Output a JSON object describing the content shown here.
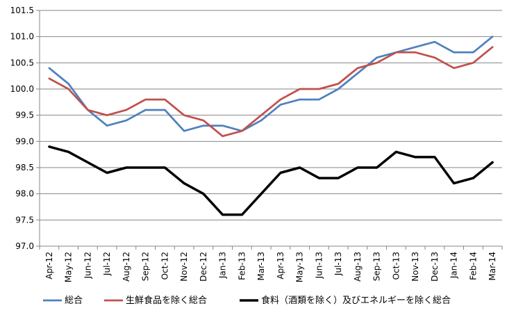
{
  "chart_data": {
    "type": "line",
    "title": "",
    "xlabel": "",
    "ylabel": "",
    "ylim": [
      97.0,
      101.5
    ],
    "yticks": [
      "97.0",
      "97.5",
      "98.0",
      "98.5",
      "99.0",
      "99.5",
      "100.0",
      "100.5",
      "101.0",
      "101.5"
    ],
    "ytick_values": [
      97.0,
      97.5,
      98.0,
      98.5,
      99.0,
      99.5,
      100.0,
      100.5,
      101.0,
      101.5
    ],
    "grid": "horizontal",
    "legend_position": "bottom",
    "categories": [
      "Apr-12",
      "May-12",
      "Jun-12",
      "Jul-12",
      "Aug-12",
      "Sep-12",
      "Oct-12",
      "Nov-12",
      "Dec-12",
      "Jan-13",
      "Feb-13",
      "Mar-13",
      "Apr-13",
      "May-13",
      "Jun-13",
      "Jul-13",
      "Aug-13",
      "Sep-13",
      "Oct-13",
      "Nov-13",
      "Dec-13",
      "Jan-14",
      "Feb-14",
      "Mar-14"
    ],
    "series": [
      {
        "name": "総合",
        "color": "#4F81BD",
        "values": [
          100.4,
          100.1,
          99.6,
          99.3,
          99.4,
          99.6,
          99.6,
          99.2,
          99.3,
          99.3,
          99.2,
          99.4,
          99.7,
          99.8,
          99.8,
          100.0,
          100.3,
          100.6,
          100.7,
          100.8,
          100.9,
          100.7,
          100.7,
          101.0
        ]
      },
      {
        "name": "生鮮食品を除く総合",
        "color": "#C0504D",
        "values": [
          100.2,
          100.0,
          99.6,
          99.5,
          99.6,
          99.8,
          99.8,
          99.5,
          99.4,
          99.1,
          99.2,
          99.5,
          99.8,
          100.0,
          100.0,
          100.1,
          100.4,
          100.5,
          100.7,
          100.7,
          100.6,
          100.4,
          100.5,
          100.8
        ]
      },
      {
        "name": "食料（酒類を除く）及びエネルギーを除く総合",
        "color": "#000000",
        "values": [
          98.9,
          98.8,
          98.6,
          98.4,
          98.5,
          98.5,
          98.5,
          98.2,
          98.0,
          97.6,
          97.6,
          98.0,
          98.4,
          98.5,
          98.3,
          98.3,
          98.5,
          98.5,
          98.8,
          98.7,
          98.7,
          98.2,
          98.3,
          98.6
        ]
      }
    ]
  }
}
